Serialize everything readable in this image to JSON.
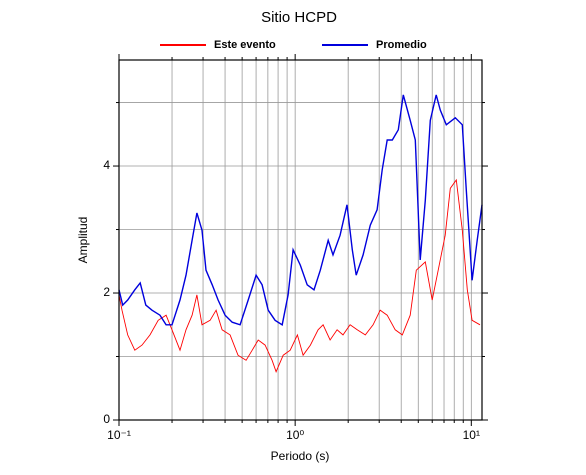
{
  "chart_data": {
    "type": "line",
    "title": "Sitio HCPD",
    "x_label": "Periodo (s)",
    "y_label": "Amplitud",
    "xscale": "log",
    "grid": true,
    "xlim": [
      0.1,
      11.5
    ],
    "ylim": [
      0,
      5.67
    ],
    "xticks": [
      {
        "value": 0.1,
        "label": "10⁻¹"
      },
      {
        "value": 1,
        "label": "10⁰"
      },
      {
        "value": 10,
        "label": "10¹"
      }
    ],
    "x_minor_ticks": [
      0.2,
      0.3,
      0.4,
      0.5,
      0.6,
      0.7,
      0.8,
      0.9,
      2,
      3,
      4,
      5,
      6,
      7,
      8,
      9
    ],
    "yticks": [
      0,
      2,
      4
    ],
    "y_minor_ticks": [
      1,
      3,
      5
    ],
    "series": [
      {
        "name": "Este evento",
        "color": "#ff0000",
        "x": [
          0.1,
          0.104,
          0.112,
          0.123,
          0.135,
          0.15,
          0.167,
          0.185,
          0.2,
          0.222,
          0.24,
          0.26,
          0.277,
          0.296,
          0.329,
          0.356,
          0.385,
          0.427,
          0.474,
          0.527,
          0.57,
          0.617,
          0.675,
          0.74,
          0.78,
          0.855,
          0.937,
          1.03,
          1.11,
          1.22,
          1.35,
          1.44,
          1.58,
          1.73,
          1.87,
          2.05,
          2.25,
          2.5,
          2.77,
          3.04,
          3.33,
          3.7,
          4.06,
          4.5,
          4.87,
          5.48,
          6.0,
          6.49,
          7.11,
          7.6,
          8.22,
          8.89,
          9.49,
          10.1,
          11.2
        ],
        "values": [
          1.97,
          1.73,
          1.34,
          1.1,
          1.18,
          1.34,
          1.57,
          1.65,
          1.42,
          1.1,
          1.42,
          1.65,
          1.97,
          1.5,
          1.57,
          1.73,
          1.42,
          1.34,
          1.02,
          0.94,
          1.1,
          1.26,
          1.18,
          0.94,
          0.76,
          1.02,
          1.1,
          1.34,
          1.02,
          1.18,
          1.42,
          1.5,
          1.26,
          1.42,
          1.34,
          1.5,
          1.42,
          1.34,
          1.5,
          1.73,
          1.65,
          1.42,
          1.34,
          1.65,
          2.36,
          2.49,
          1.89,
          2.36,
          2.91,
          3.65,
          3.78,
          2.99,
          2.05,
          1.57,
          1.5
        ]
      },
      {
        "name": "Promedio",
        "color": "#0000dd",
        "x": [
          0.1,
          0.105,
          0.112,
          0.123,
          0.132,
          0.142,
          0.154,
          0.171,
          0.185,
          0.2,
          0.222,
          0.24,
          0.26,
          0.277,
          0.296,
          0.312,
          0.338,
          0.365,
          0.4,
          0.439,
          0.487,
          0.541,
          0.6,
          0.649,
          0.703,
          0.769,
          0.844,
          0.912,
          0.974,
          1.07,
          1.17,
          1.28,
          1.39,
          1.54,
          1.64,
          1.8,
          1.97,
          2.11,
          2.22,
          2.43,
          2.67,
          2.92,
          3.12,
          3.33,
          3.56,
          3.85,
          4.11,
          4.5,
          4.81,
          5.13,
          5.48,
          5.85,
          6.32,
          6.67,
          7.21,
          8.11,
          8.89,
          9.37,
          10.1,
          10.8,
          11.5
        ],
        "values": [
          2.05,
          1.81,
          1.89,
          2.05,
          2.16,
          1.81,
          1.73,
          1.65,
          1.5,
          1.5,
          1.89,
          2.28,
          2.83,
          3.26,
          2.99,
          2.36,
          2.13,
          1.89,
          1.65,
          1.54,
          1.5,
          1.89,
          2.28,
          2.13,
          1.73,
          1.57,
          1.5,
          1.97,
          2.68,
          2.44,
          2.13,
          2.05,
          2.36,
          2.83,
          2.6,
          2.91,
          3.39,
          2.68,
          2.28,
          2.6,
          3.07,
          3.31,
          3.94,
          4.41,
          4.41,
          4.57,
          5.12,
          4.72,
          4.41,
          2.52,
          3.46,
          4.72,
          5.12,
          4.88,
          4.65,
          4.76,
          4.65,
          3.62,
          2.2,
          2.83,
          3.39
        ]
      }
    ]
  }
}
